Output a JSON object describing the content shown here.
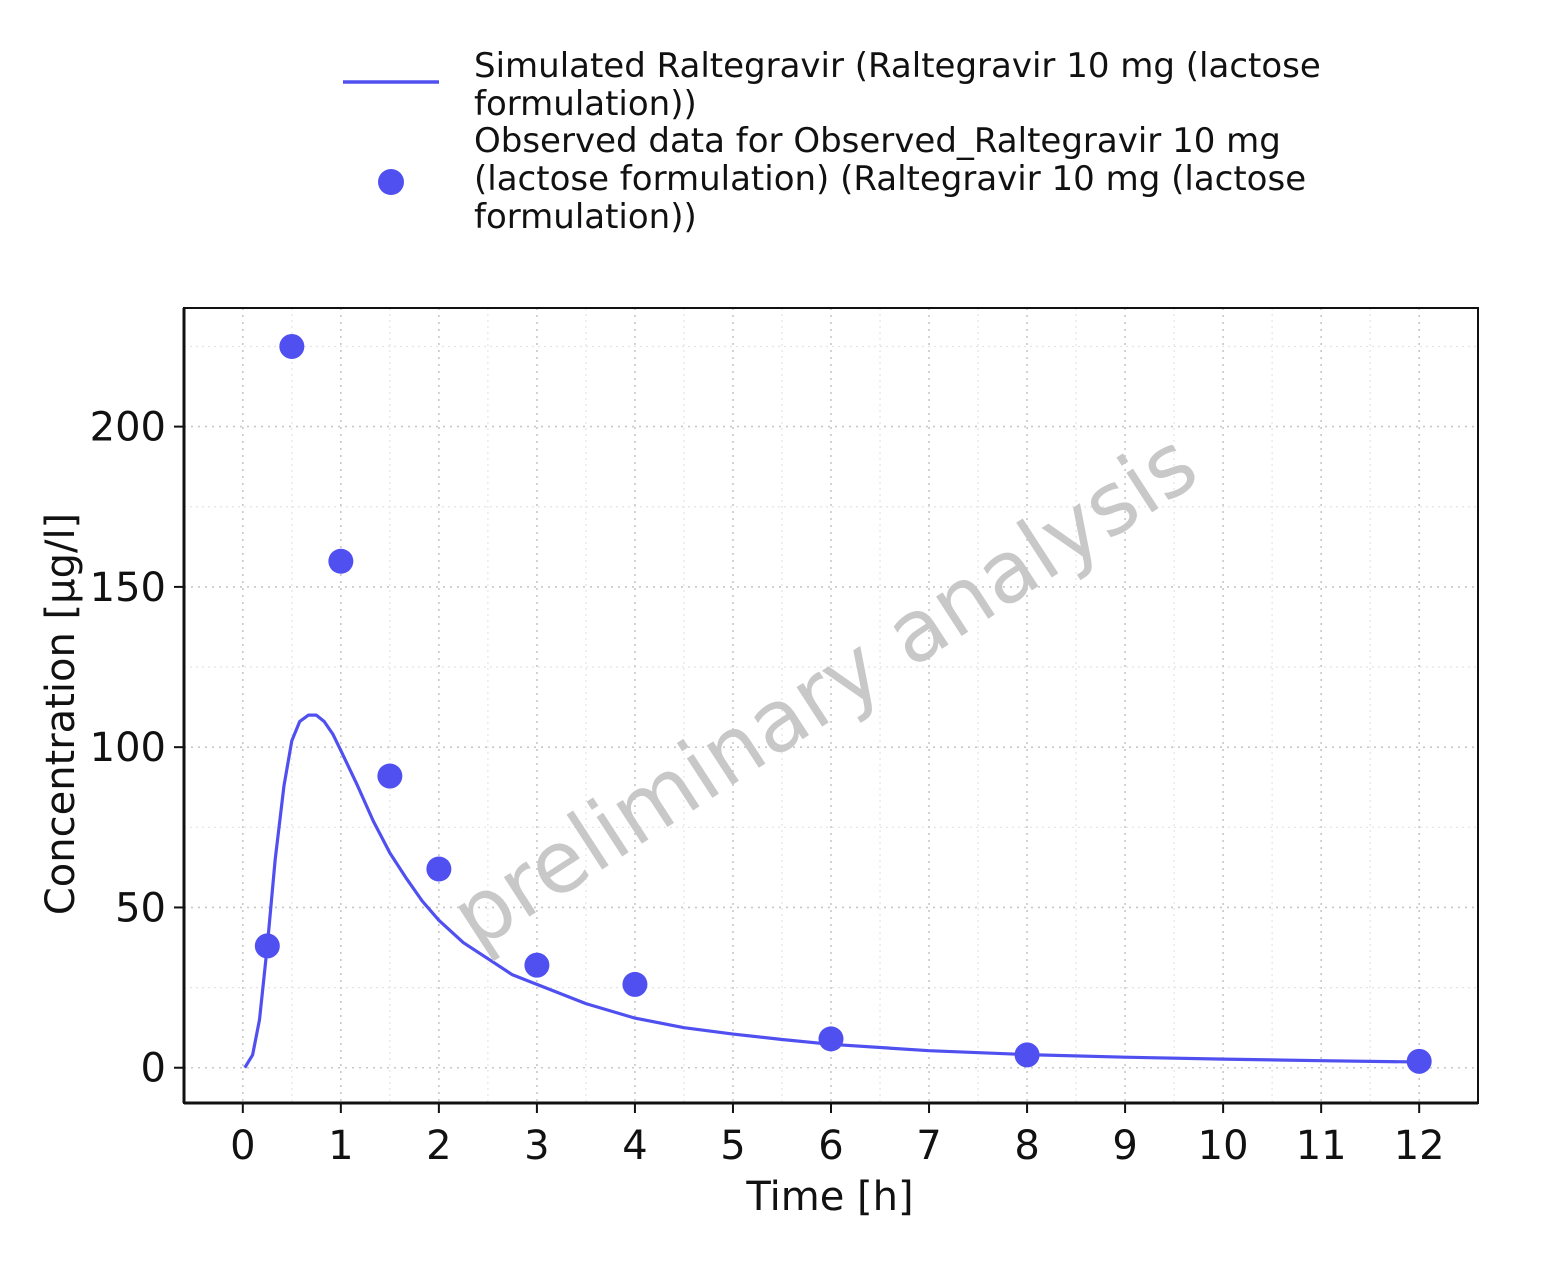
{
  "chart_data": {
    "type": "line",
    "xlabel": "Time [h]",
    "ylabel": "Concentration [µg/l]",
    "xlim": [
      -0.6,
      12.6
    ],
    "ylim": [
      -11,
      237
    ],
    "x_ticks": [
      0,
      1,
      2,
      3,
      4,
      5,
      6,
      7,
      8,
      9,
      10,
      11,
      12
    ],
    "y_ticks": [
      0,
      50,
      100,
      150,
      200
    ],
    "grid": true,
    "legend_position": "top",
    "watermark": "preliminary analysis",
    "colors": {
      "series": "#5050f0"
    },
    "series": [
      {
        "name": "Simulated Raltegravir (Raltegravir 10 mg (lactose formulation))",
        "kind": "line",
        "x": [
          0.02,
          0.1,
          0.17,
          0.25,
          0.33,
          0.42,
          0.5,
          0.58,
          0.67,
          0.75,
          0.83,
          0.92,
          1.0,
          1.17,
          1.33,
          1.5,
          1.67,
          1.83,
          2.0,
          2.25,
          2.5,
          2.75,
          3.0,
          3.5,
          4.0,
          4.5,
          5.0,
          5.5,
          6.0,
          7.0,
          8.0,
          9.0,
          10.0,
          11.0,
          12.0
        ],
        "y": [
          0,
          4,
          15,
          38,
          65,
          88,
          102,
          108,
          110,
          110,
          108,
          104,
          99,
          88,
          77,
          67,
          59,
          52,
          46,
          39,
          34,
          29,
          26,
          20,
          15.5,
          12.5,
          10.5,
          8.8,
          7.3,
          5.3,
          4.1,
          3.3,
          2.7,
          2.2,
          1.8
        ]
      },
      {
        "name": "Observed data for Observed_Raltegravir 10 mg (lactose formulation) (Raltegravir 10 mg (lactose formulation))",
        "kind": "scatter",
        "x": [
          0.25,
          0.5,
          1.0,
          1.5,
          2.0,
          3.0,
          4.0,
          6.0,
          8.0,
          12.0
        ],
        "y": [
          38,
          225,
          158,
          91,
          62,
          32,
          26,
          9,
          4,
          2
        ]
      }
    ],
    "legend": [
      {
        "lines": [
          "Simulated Raltegravir (Raltegravir 10 mg (lactose",
          "formulation))"
        ]
      },
      {
        "lines": [
          "Observed data for Observed_Raltegravir 10 mg",
          "(lactose formulation) (Raltegravir 10 mg (lactose",
          "formulation))"
        ]
      }
    ]
  }
}
